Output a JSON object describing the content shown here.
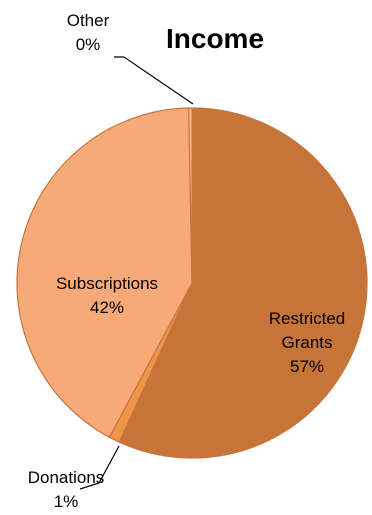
{
  "chart_data": {
    "type": "pie",
    "title": "Income",
    "slices": [
      {
        "label_lines": [
          "Restricted",
          "Grants"
        ],
        "value": 57,
        "value_label": "57%",
        "color": "#c67437"
      },
      {
        "label_lines": [
          "Donations"
        ],
        "value": 1,
        "value_label": "1%",
        "color": "#ef9448"
      },
      {
        "label_lines": [
          "Subscriptions"
        ],
        "value": 42,
        "value_label": "42%",
        "color": "#f7aa78"
      },
      {
        "label_lines": [
          "Other"
        ],
        "value": 0.3,
        "value_label": "0%",
        "color": "#fbc79d"
      }
    ],
    "slice_order": "clockwise from 12 o'clock",
    "slice_border_color": "#c5763d",
    "leader_line_color": "#000000"
  }
}
